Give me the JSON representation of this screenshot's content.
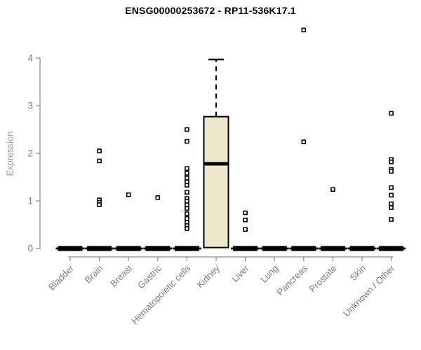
{
  "page": {
    "title": "ENSG00000253672 - RP11-536K17.1"
  },
  "chart_data": {
    "type": "boxplot",
    "title": "ENSG00000253672 - RP11-536K17.1",
    "xlabel": "",
    "ylabel": "Expression",
    "ylim": [
      0,
      4
    ],
    "yticks": [
      0,
      1,
      2,
      3,
      4
    ],
    "grid": false,
    "legend": "none",
    "categories": [
      "Bladder",
      "Brain",
      "Breast",
      "Gastric",
      "Hematopoietic cells",
      "Kidney",
      "Liver",
      "Lung",
      "Pancreas",
      "Prostate",
      "Skin",
      "Unknown / Other"
    ],
    "boxes": [
      {
        "category": "Bladder",
        "q1": 0,
        "median": 0,
        "q3": 0,
        "whisker_low": 0,
        "whisker_high": 0,
        "outliers": []
      },
      {
        "category": "Brain",
        "q1": 0,
        "median": 0,
        "q3": 0,
        "whisker_low": 0,
        "whisker_high": 0,
        "outliers": [
          2.05,
          1.84,
          1.02,
          0.97,
          0.92
        ]
      },
      {
        "category": "Breast",
        "q1": 0,
        "median": 0,
        "q3": 0,
        "whisker_low": 0,
        "whisker_high": 0,
        "outliers": [
          1.13
        ]
      },
      {
        "category": "Gastric",
        "q1": 0,
        "median": 0,
        "q3": 0,
        "whisker_low": 0,
        "whisker_high": 0,
        "outliers": [
          1.07
        ]
      },
      {
        "category": "Hematopoietic cells",
        "q1": 0,
        "median": 0,
        "q3": 0,
        "whisker_low": 0,
        "whisker_high": 0,
        "outliers": [
          2.5,
          2.25,
          1.68,
          1.58,
          1.48,
          1.4,
          1.33,
          1.18,
          1.05,
          0.99,
          0.92,
          0.84,
          0.73,
          0.63,
          0.55,
          0.48,
          0.42
        ]
      },
      {
        "category": "Kidney",
        "q1": 0.02,
        "median": 1.78,
        "q3": 2.77,
        "whisker_low": 0.02,
        "whisker_high": 3.97,
        "outliers": []
      },
      {
        "category": "Liver",
        "q1": 0,
        "median": 0,
        "q3": 0,
        "whisker_low": 0,
        "whisker_high": 0,
        "outliers": [
          0.75,
          0.6,
          0.4
        ]
      },
      {
        "category": "Lung",
        "q1": 0,
        "median": 0,
        "q3": 0,
        "whisker_low": 0,
        "whisker_high": 0,
        "outliers": []
      },
      {
        "category": "Pancreas",
        "q1": 0,
        "median": 0,
        "q3": 0,
        "whisker_low": 0,
        "whisker_high": 0,
        "outliers": [
          4.59,
          2.24
        ]
      },
      {
        "category": "Prostate",
        "q1": 0,
        "median": 0,
        "q3": 0,
        "whisker_low": 0,
        "whisker_high": 0,
        "outliers": [
          1.24
        ]
      },
      {
        "category": "Skin",
        "q1": 0,
        "median": 0,
        "q3": 0,
        "whisker_low": 0,
        "whisker_high": 0,
        "outliers": []
      },
      {
        "category": "Unknown / Other",
        "q1": 0,
        "median": 0,
        "q3": 0,
        "whisker_low": 0,
        "whisker_high": 0,
        "outliers": [
          2.84,
          1.87,
          1.82,
          1.66,
          1.62,
          1.28,
          1.12,
          0.94,
          0.86,
          0.61
        ]
      }
    ],
    "colors": {
      "box_fill": "#ede7cb",
      "box_stroke": "#000000",
      "median": "#000000",
      "outlier_fill": "#ffffff",
      "outlier_stroke": "#000000",
      "axis": "#8a8a8a",
      "tick_label": "#7d7d7d",
      "axis_title": "#9b9b9b",
      "title": "#000000",
      "background": "#ffffff"
    }
  }
}
